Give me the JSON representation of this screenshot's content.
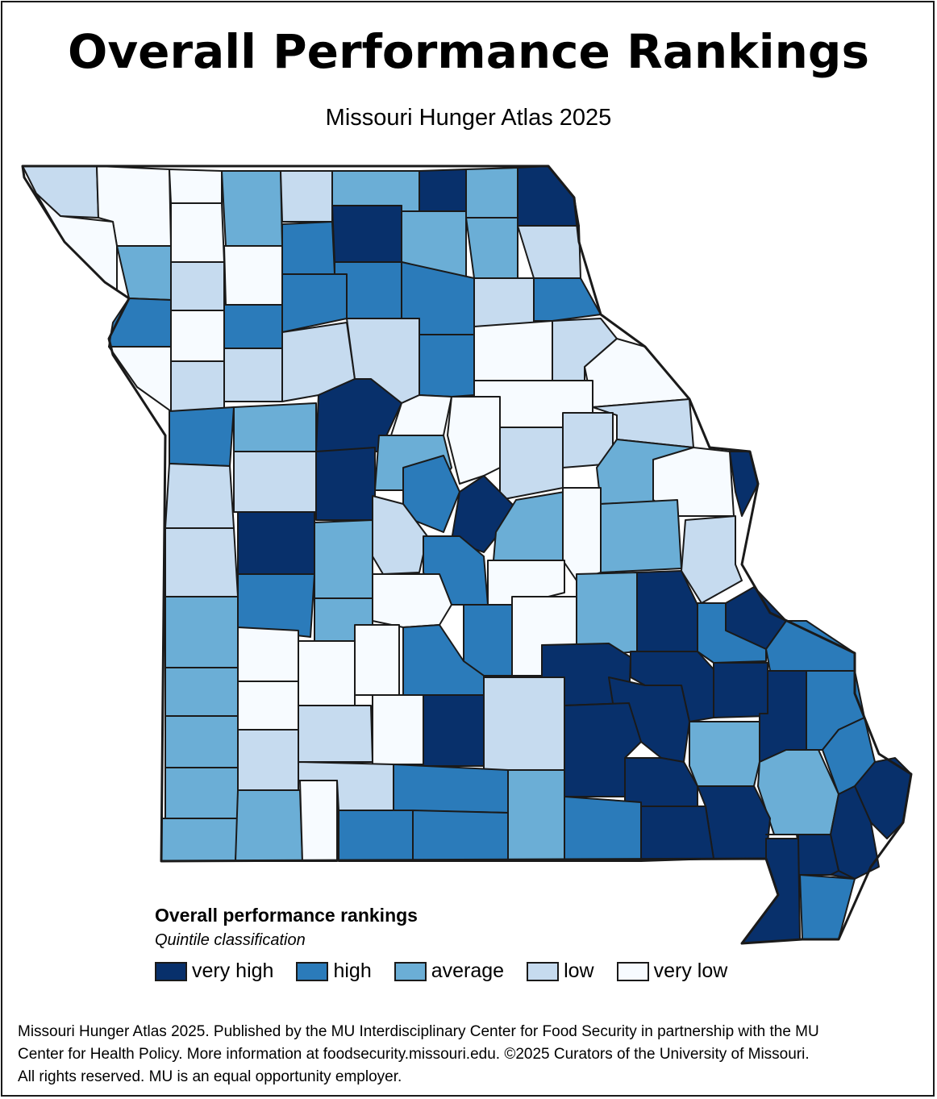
{
  "header": {
    "title": "Overall Performance Rankings",
    "subtitle": "Missouri Hunger Atlas 2025"
  },
  "colors": {
    "very_high": "#08306b",
    "high": "#2b7bba",
    "average": "#6baed6",
    "low": "#c6dbef",
    "very_low": "#f7fbff",
    "border": "#1a1a1a"
  },
  "legend": {
    "title": "Overall performance rankings",
    "subtitle": "Quintile classification",
    "items": [
      {
        "key": "very_high",
        "label": "very high",
        "color": "#08306b"
      },
      {
        "key": "high",
        "label": "high",
        "color": "#2b7bba"
      },
      {
        "key": "average",
        "label": "average",
        "color": "#6baed6"
      },
      {
        "key": "low",
        "label": "low",
        "color": "#c6dbef"
      },
      {
        "key": "very_low",
        "label": "very low",
        "color": "#f7fbff"
      }
    ]
  },
  "footer": {
    "line1": "Missouri Hunger Atlas 2025. Published by the MU Interdisciplinary Center for Food Security in partnership with the MU",
    "line2": "Center for Health Policy. More information at foodsecurity.missouri.edu. ©2025 Curators of the University of Missouri.",
    "line3": "All rights reserved. MU is an equal opportunity employer."
  }
}
